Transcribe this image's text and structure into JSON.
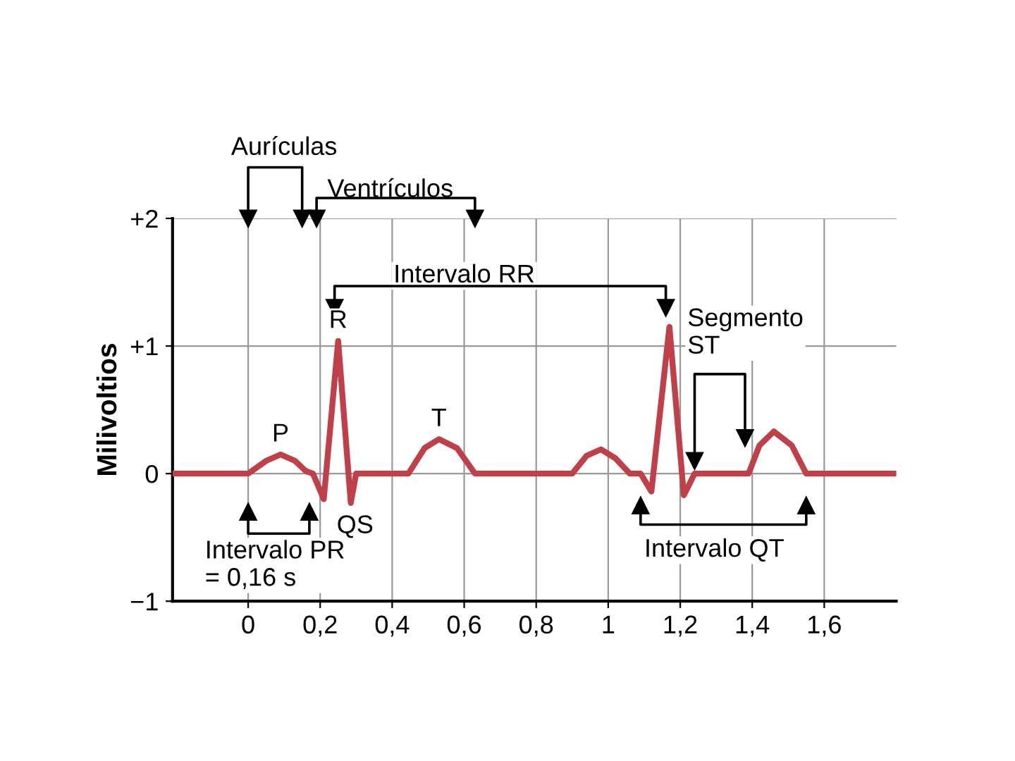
{
  "chart_data": {
    "type": "line",
    "ylabel": "Milivoltios",
    "x": [
      -0.21,
      0.0,
      0.05,
      0.09,
      0.13,
      0.16,
      0.18,
      0.21,
      0.25,
      0.285,
      0.3,
      0.445,
      0.49,
      0.53,
      0.58,
      0.63,
      0.9,
      0.94,
      0.98,
      1.02,
      1.06,
      1.09,
      1.12,
      1.17,
      1.21,
      1.24,
      1.39,
      1.42,
      1.46,
      1.51,
      1.55,
      1.8
    ],
    "series": [
      {
        "color": "#c0404a",
        "values": [
          0,
          0,
          0.1,
          0.15,
          0.1,
          0.02,
          0,
          -0.2,
          1.04,
          -0.23,
          0,
          0,
          0.2,
          0.27,
          0.2,
          0,
          0,
          0.14,
          0.19,
          0.12,
          0,
          0,
          -0.14,
          1.15,
          -0.17,
          0,
          0,
          0.22,
          0.33,
          0.22,
          0,
          0
        ]
      }
    ],
    "xlim": [
      -0.21,
      1.8
    ],
    "ylim": [
      -1,
      2
    ],
    "xticks": [
      0,
      {
        "value": 0.2,
        "label": "0,2"
      },
      {
        "value": 0.4,
        "label": "0,4"
      },
      {
        "value": 0.6,
        "label": "0,6"
      },
      {
        "value": 0.8,
        "label": "0,8"
      },
      1,
      {
        "value": 1.2,
        "label": "1,2"
      },
      {
        "value": 1.4,
        "label": "1,4"
      },
      {
        "value": 1.6,
        "label": "1,6"
      }
    ],
    "yticks": [
      {
        "value": -1,
        "label": "−1"
      },
      0,
      {
        "value": 1,
        "label": "+1"
      },
      {
        "value": 2,
        "label": "+2"
      }
    ],
    "grid": true,
    "line_style": "solid",
    "marker": "none",
    "annotations": [
      {
        "text": "P",
        "x": 0.09,
        "y": 0.15
      },
      {
        "text": "R",
        "x": 0.25,
        "y": 1.04
      },
      {
        "text": "T",
        "x": 0.53,
        "y": 0.27
      },
      {
        "text": "QS",
        "x": 0.21,
        "y": -0.2
      },
      "Aurículas",
      "Ventrículos",
      "Intervalo RR",
      "Segmento\nST",
      "Intervalo PR\n= 0,16 s",
      "Intervalo QT"
    ]
  }
}
